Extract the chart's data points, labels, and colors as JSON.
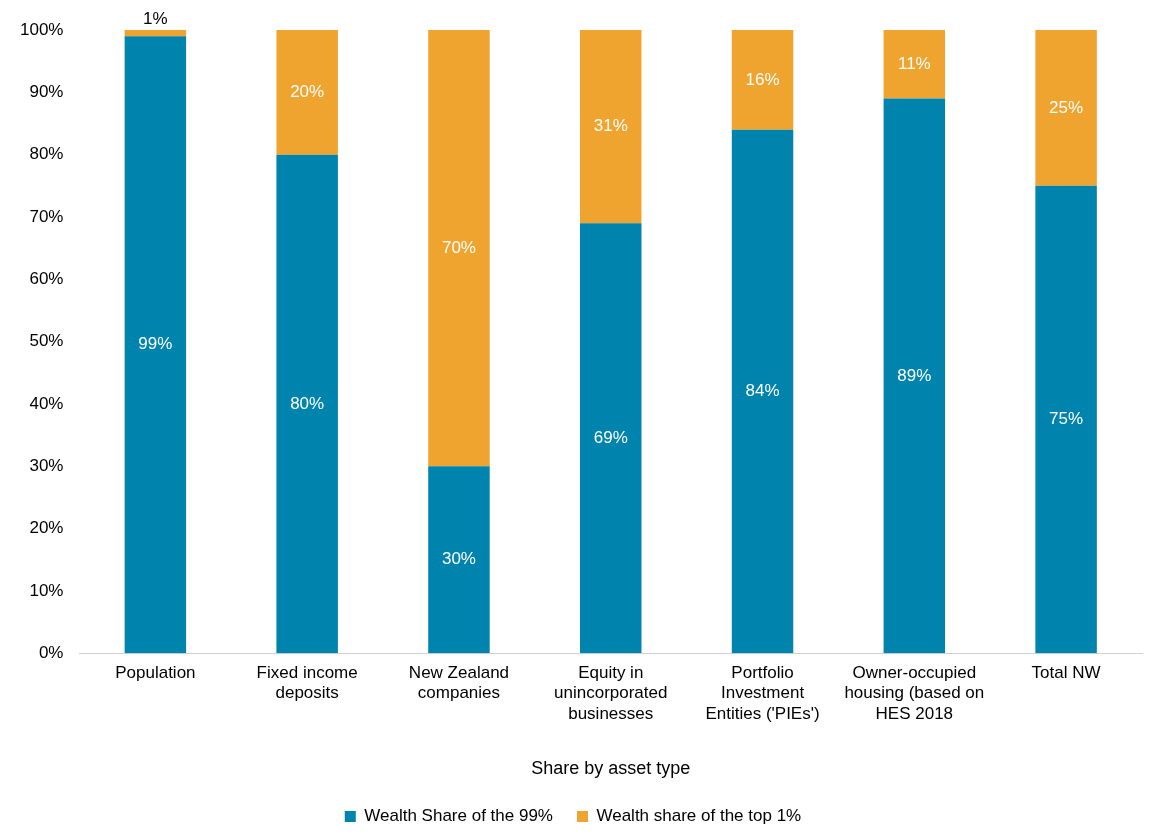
{
  "chart_data": {
    "type": "bar",
    "stacked": true,
    "xlabel": "Share by asset type",
    "categories": [
      "Population",
      "Fixed income deposits",
      "New Zealand companies",
      "Equity in unincorporated businesses",
      "Portfolio Investment Entities ('PIEs')",
      "Owner-occupied housing (based on HES 2018",
      "Total NW"
    ],
    "series": [
      {
        "name": "Wealth Share of the 99%",
        "color": "#0083ad",
        "values": [
          99,
          80,
          30,
          69,
          84,
          89,
          75
        ],
        "value_labels": [
          "99%",
          "80%",
          "30%",
          "69%",
          "84%",
          "89%",
          "75%"
        ]
      },
      {
        "name": "Wealth share of the top 1%",
        "color": "#f0a430",
        "values": [
          1,
          20,
          70,
          31,
          16,
          11,
          25
        ],
        "value_labels": [
          "1%",
          "20%",
          "70%",
          "31%",
          "16%",
          "11%",
          "25%"
        ]
      }
    ],
    "ylim": [
      0,
      100
    ],
    "yticks": [
      {
        "value": 0,
        "label": "0%"
      },
      {
        "value": 10,
        "label": "10%"
      },
      {
        "value": 20,
        "label": "20%"
      },
      {
        "value": 30,
        "label": "30%"
      },
      {
        "value": 40,
        "label": "40%"
      },
      {
        "value": 50,
        "label": "50%"
      },
      {
        "value": 60,
        "label": "60%"
      },
      {
        "value": 70,
        "label": "70%"
      },
      {
        "value": 80,
        "label": "80%"
      },
      {
        "value": 90,
        "label": "90%"
      },
      {
        "value": 100,
        "label": "100%"
      }
    ],
    "grid": false,
    "legend": "bottom"
  }
}
